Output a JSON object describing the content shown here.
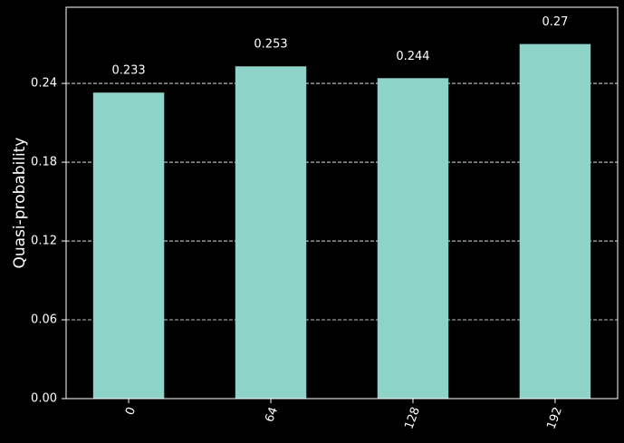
{
  "chart_data": {
    "type": "bar",
    "y_label": "Quasi-probability",
    "categories": [
      "0",
      "64",
      "128",
      "192"
    ],
    "values": [
      0.233,
      0.253,
      0.244,
      0.27
    ],
    "color": "#8dd3c7",
    "ylim": [
      0,
      0.298
    ],
    "yticks": [
      {
        "value": 0,
        "label": "0.00"
      },
      0.06,
      0.12,
      0.18,
      0.24
    ],
    "grid": true
  }
}
